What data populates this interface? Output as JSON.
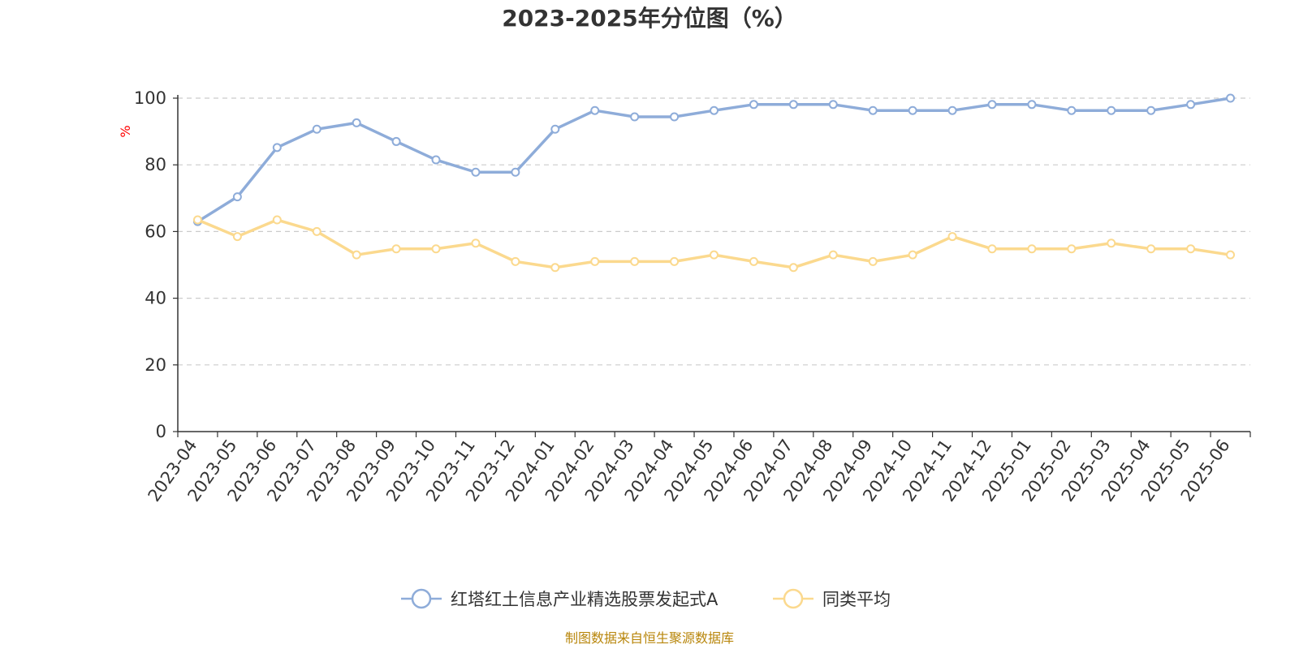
{
  "chart_data": {
    "type": "line",
    "title": "2023-2025年分位图（%）",
    "ylabel": "%",
    "xlabel": "",
    "ylim": [
      0,
      100
    ],
    "yticks": [
      0,
      20,
      40,
      60,
      80,
      100
    ],
    "grid": "horizontal dashed",
    "legend_position": "bottom-center",
    "categories": [
      "2023-04",
      "2023-05",
      "2023-06",
      "2023-07",
      "2023-08",
      "2023-09",
      "2023-10",
      "2023-11",
      "2023-12",
      "2024-01",
      "2024-02",
      "2024-03",
      "2024-04",
      "2024-05",
      "2024-06",
      "2024-07",
      "2024-08",
      "2024-09",
      "2024-10",
      "2024-11",
      "2024-12",
      "2025-01",
      "2025-02",
      "2025-03",
      "2025-04",
      "2025-05",
      "2025-06"
    ],
    "series": [
      {
        "name": "红塔红土信息产业精选股票发起式A",
        "color": "#8eacd9",
        "values": [
          63,
          70.4,
          85.2,
          90.7,
          92.6,
          87,
          81.5,
          77.8,
          77.8,
          90.7,
          96.3,
          94.4,
          94.4,
          96.3,
          98.1,
          98.1,
          98.1,
          96.3,
          96.3,
          96.3,
          98.1,
          98.1,
          96.3,
          96.3,
          96.3,
          98.1,
          100
        ]
      },
      {
        "name": "同类平均",
        "color": "#fbd98e",
        "values": [
          63.5,
          58.5,
          63.5,
          60,
          53,
          54.8,
          54.8,
          56.5,
          51,
          49.2,
          51,
          51,
          51,
          53,
          51,
          49.2,
          53,
          51,
          53,
          58.5,
          54.8,
          54.8,
          54.8,
          56.5,
          54.8,
          54.8,
          53
        ]
      }
    ]
  },
  "source_note": "制图数据来自恒生聚源数据库"
}
